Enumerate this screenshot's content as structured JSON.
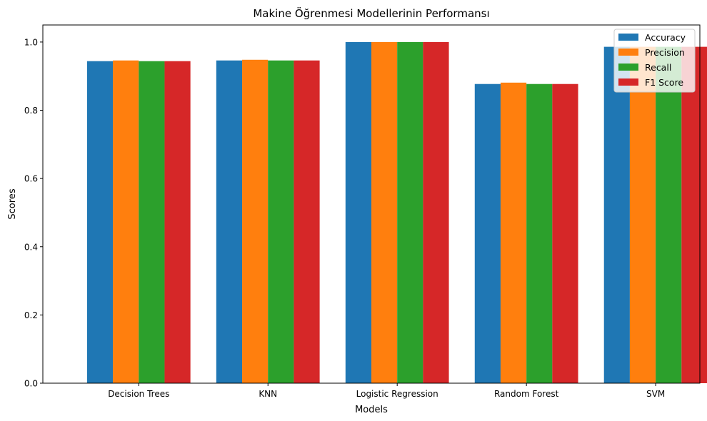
{
  "chart_data": {
    "type": "bar",
    "title": "Makine Öğrenmesi Modellerinin Performansı",
    "xlabel": "Models",
    "ylabel": "Scores",
    "categories": [
      "Decision Trees",
      "KNN",
      "Logistic Regression",
      "Random Forest",
      "SVM"
    ],
    "series": [
      {
        "name": "Accuracy",
        "color": "#1f77b4",
        "values": [
          0.944,
          0.946,
          1.0,
          0.877,
          0.986
        ]
      },
      {
        "name": "Precision",
        "color": "#ff7f0e",
        "values": [
          0.946,
          0.948,
          1.0,
          0.881,
          0.986
        ]
      },
      {
        "name": "Recall",
        "color": "#2ca02c",
        "values": [
          0.944,
          0.946,
          1.0,
          0.877,
          0.986
        ]
      },
      {
        "name": "F1 Score",
        "color": "#d62728",
        "values": [
          0.944,
          0.946,
          1.0,
          0.877,
          0.986
        ]
      }
    ],
    "ylim": [
      0,
      1.05
    ],
    "yticks": [
      0.0,
      0.2,
      0.4,
      0.6,
      0.8,
      1.0
    ],
    "ytick_labels": [
      "0.0",
      "0.2",
      "0.4",
      "0.6",
      "0.8",
      "1.0"
    ],
    "grid": false,
    "legend_position": "top-right"
  }
}
